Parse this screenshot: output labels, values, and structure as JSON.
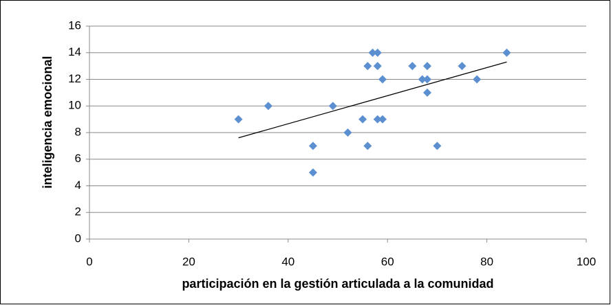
{
  "chart_data": {
    "type": "scatter",
    "x_label": "participación en la gestión articulada a la comunidad",
    "y_label": "inteligencia emocional",
    "x": [
      30,
      36,
      45,
      45,
      49,
      52,
      55,
      56,
      56,
      57,
      58,
      58,
      58,
      59,
      59,
      65,
      67,
      68,
      68,
      68,
      70,
      75,
      78,
      84
    ],
    "values": [
      9,
      10,
      7,
      5,
      10,
      8,
      9,
      7,
      13,
      14,
      14,
      13,
      9,
      9,
      12,
      13,
      12,
      13,
      12,
      11,
      7,
      13,
      12,
      14
    ],
    "color": "#5b8fd0",
    "trendline": true,
    "xlim": [
      0,
      100
    ],
    "xticks": [
      0,
      20,
      40,
      60,
      80,
      100
    ],
    "ylim": [
      0,
      16
    ],
    "yticks": [
      0,
      2,
      4,
      6,
      8,
      10,
      12,
      14,
      16
    ],
    "grid": true
  }
}
